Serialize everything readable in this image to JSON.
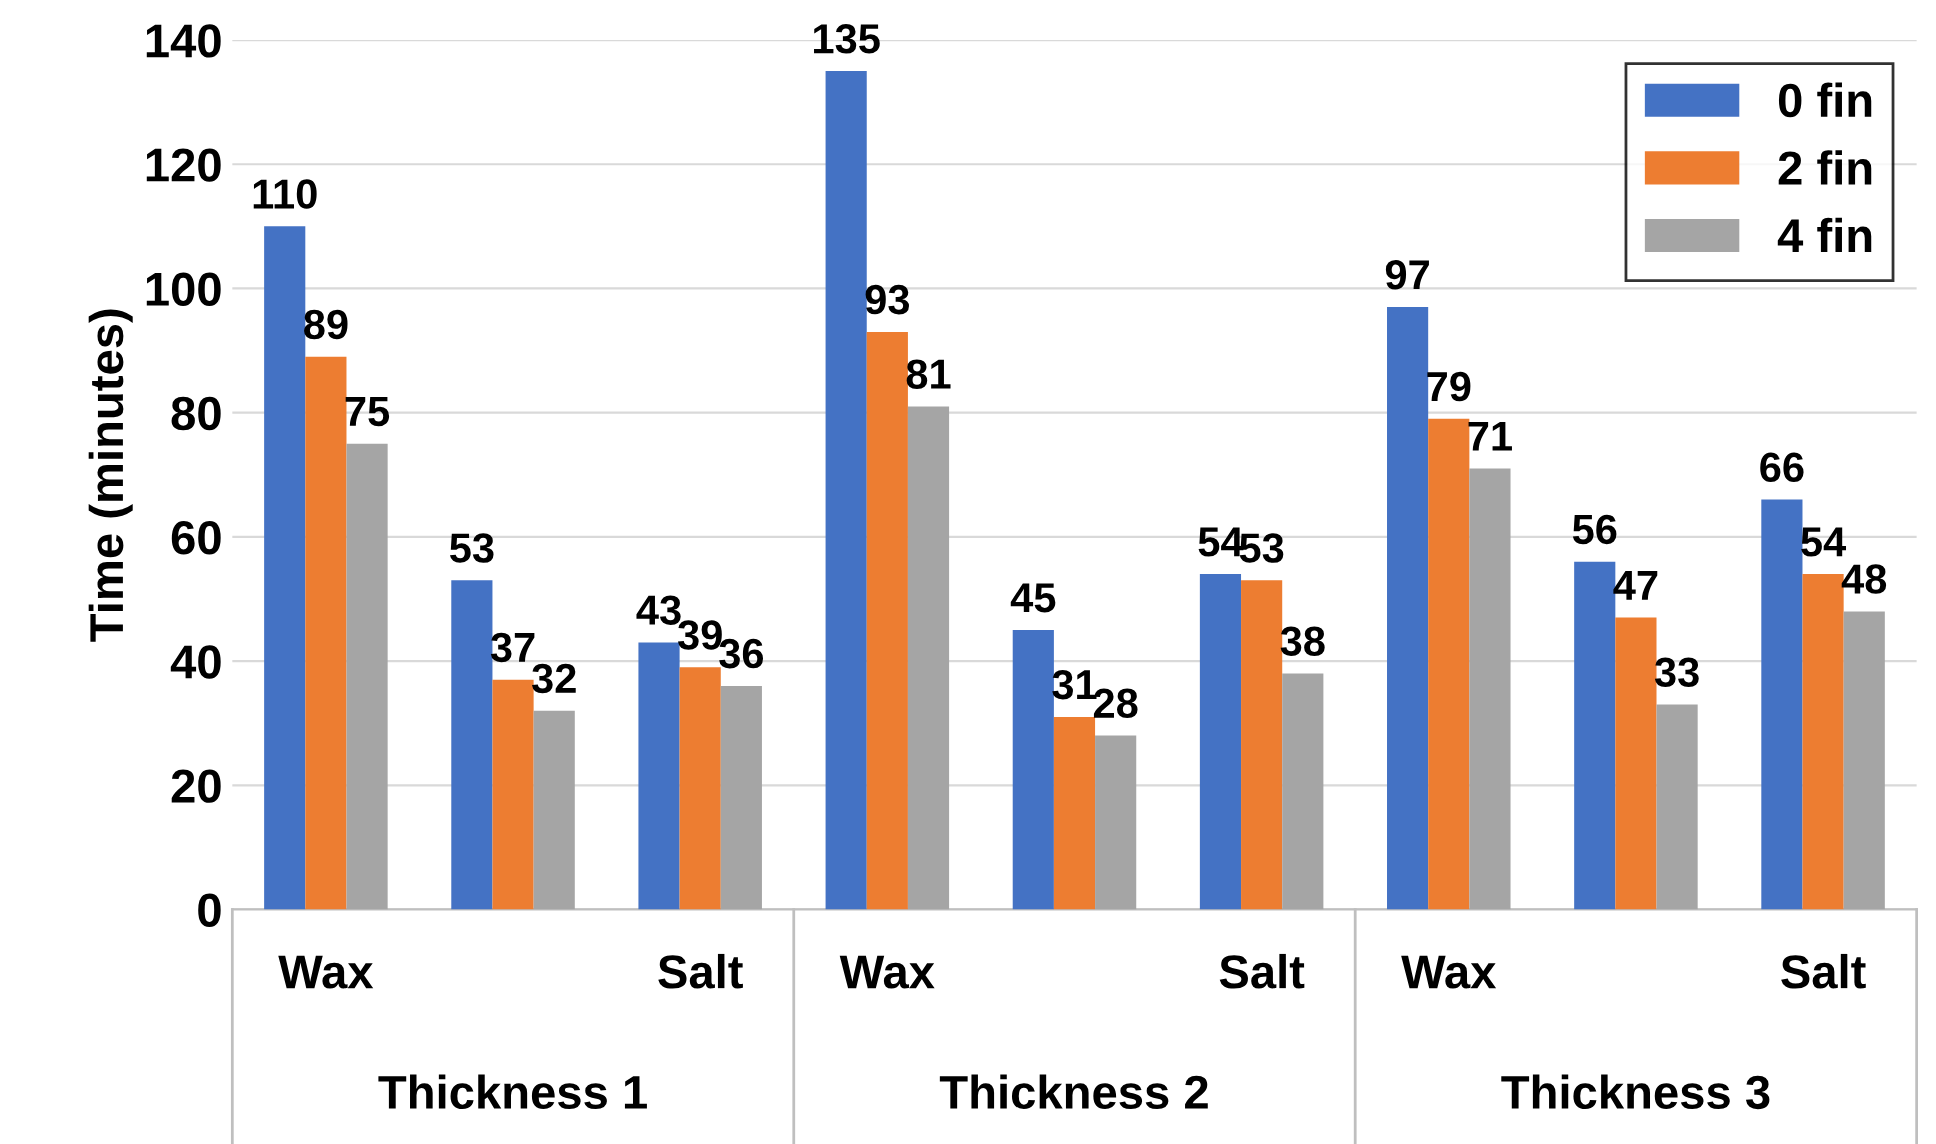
{
  "chart_data": {
    "type": "bar",
    "ylabel": "Time (minutes)",
    "categories": [
      "Wax",
      null,
      "Salt",
      "Wax",
      null,
      "Salt",
      "Wax",
      null,
      "Salt"
    ],
    "series": [
      {
        "name": "0 fin",
        "color": "#4472c4",
        "values": [
          110,
          53,
          43,
          135,
          45,
          54,
          97,
          56,
          66
        ]
      },
      {
        "name": "2 fin",
        "color": "#ed7d31",
        "values": [
          89,
          37,
          39,
          93,
          31,
          53,
          79,
          47,
          54
        ]
      },
      {
        "name": "4 fin",
        "color": "#a5a5a5",
        "values": [
          75,
          32,
          36,
          81,
          28,
          38,
          71,
          33,
          48
        ]
      }
    ],
    "annotations": [
      "Thickness 1",
      "Thickness 2",
      "Thickness 3"
    ],
    "ylim": [
      0,
      140
    ],
    "yticks": [
      0,
      20,
      40,
      60,
      80,
      100,
      120,
      140
    ],
    "grid": "y",
    "legend": "top right",
    "data_labels": true
  }
}
